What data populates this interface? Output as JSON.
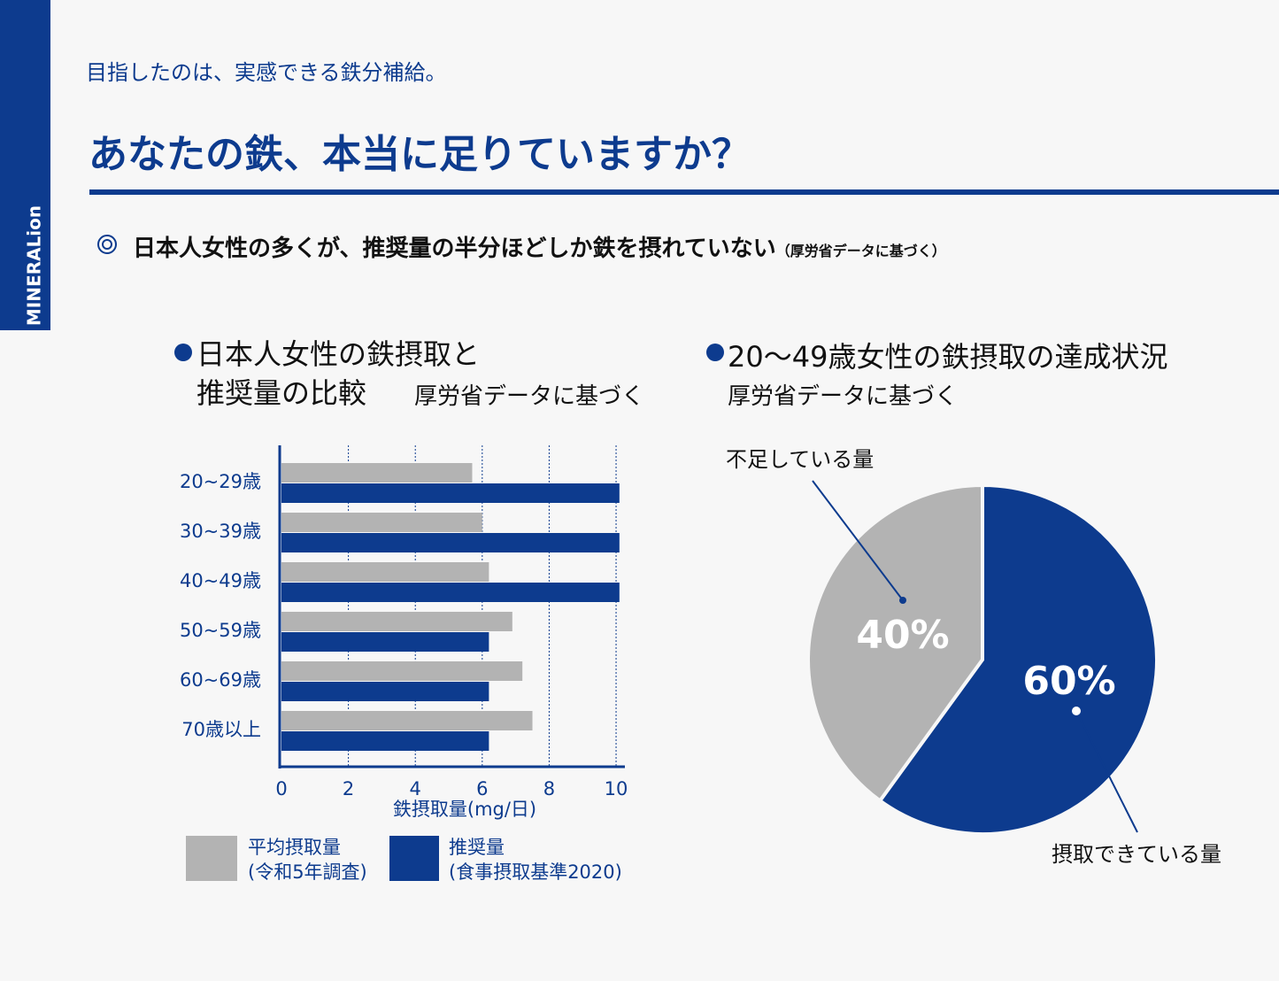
{
  "header": {
    "logo": "MINERALion",
    "tagline": "目指したのは、実感できる鉄分補給。",
    "headline": "あなたの鉄、本当に足りていますか？",
    "point": "日本人女性の多くが、推奨量の半分ほどしか鉄を摂れていない",
    "point_note": "（厚労省データに基づく）"
  },
  "chart_data": [
    {
      "type": "hbar",
      "title": "日本人女性の鉄摂取と\n推奨量の比較",
      "subtitle": "厚労省データに基づく",
      "xlabel": "鉄摂取量(mg/日)",
      "categories": [
        "20~29歳",
        "30~39歳",
        "40~49歳",
        "50~59歳",
        "60~69歳",
        "70歳以上"
      ],
      "series": [
        {
          "name": "平均摂取量\n(令和5年調査)",
          "color": "#b3b3b3",
          "values": [
            5.7,
            6.0,
            6.2,
            6.9,
            7.2,
            7.5
          ]
        },
        {
          "name": "推奨量\n(食事摂取基準2020)",
          "color": "#0d3b8e",
          "values": [
            10.1,
            10.1,
            10.1,
            6.2,
            6.2,
            6.2
          ]
        }
      ],
      "xlim": [
        0,
        10.2
      ],
      "xticks": [
        0,
        2,
        4,
        6,
        8,
        10
      ],
      "grid": true
    },
    {
      "type": "pie",
      "title": "20〜49歳女性の鉄摂取の達成状況",
      "subtitle": "厚労省データに基づく",
      "categories": [
        "摂取できている量",
        "不足している量"
      ],
      "values": [
        60,
        40
      ],
      "value_labels": [
        "60%",
        "40%"
      ],
      "colors": [
        "#0d3b8e",
        "#b3b3b3"
      ]
    }
  ]
}
